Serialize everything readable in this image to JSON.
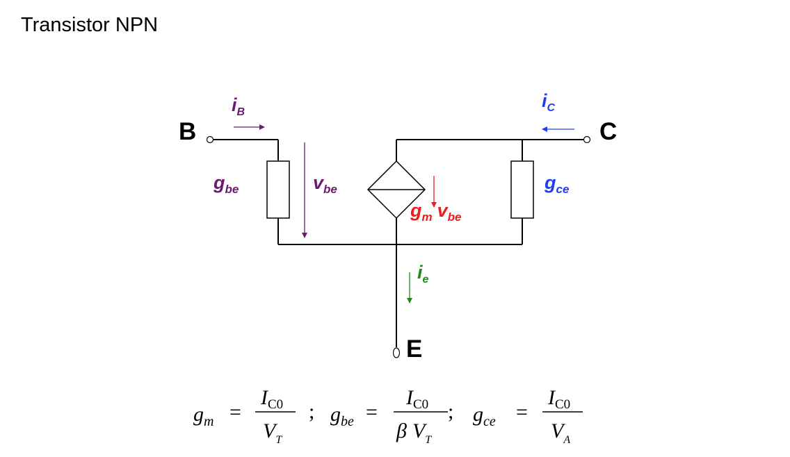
{
  "title": "Transistor NPN",
  "terminals": {
    "base": "B",
    "collector": "C",
    "emitter": "E"
  },
  "labels": {
    "ib_main": "i",
    "ib_sub": "B",
    "ic_main": "i",
    "ic_sub": "C",
    "ie_main": "i",
    "ie_sub": "e",
    "gbe_main": "g",
    "gbe_sub": "be",
    "vbe_main": "v",
    "vbe_sub": "be",
    "gce_main": "g",
    "gce_sub": "ce",
    "gm_main": "g",
    "gm_sub": "m",
    "gmv_main": "v",
    "gmv_sub": "be"
  },
  "formulas": {
    "gm": {
      "lhs": "g",
      "lhs_sub": "m",
      "num": "I",
      "num_sub": "C0",
      "den": "V",
      "den_sub": "T"
    },
    "gbe": {
      "lhs": "g",
      "lhs_sub": "be",
      "num": "I",
      "num_sub": "C0",
      "den_beta": "β",
      "den": "V",
      "den_sub": "T"
    },
    "gce": {
      "lhs": "g",
      "lhs_sub": "ce",
      "num": "I",
      "num_sub": "C0",
      "den": "V",
      "den_sub": "A"
    },
    "eq": "=",
    "sep": ";"
  },
  "colors": {
    "purple": "#6a1b6f",
    "blue": "#1f3df2",
    "red": "#f01c1c",
    "green": "#1a8a1a",
    "black": "#000000"
  }
}
